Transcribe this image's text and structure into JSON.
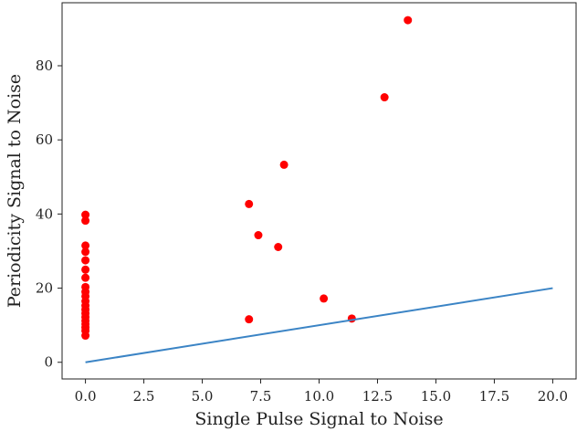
{
  "chart_data": {
    "type": "scatter",
    "xlabel": "Single Pulse Signal to Noise",
    "ylabel": "Periodicity Signal to Noise",
    "xlim": [
      -1.0,
      21.0
    ],
    "ylim": [
      -4.5,
      97.0
    ],
    "xticks": [
      0.0,
      2.5,
      5.0,
      7.5,
      10.0,
      12.5,
      15.0,
      17.5,
      20.0
    ],
    "xtick_labels": [
      "0.0",
      "2.5",
      "5.0",
      "7.5",
      "10.0",
      "12.5",
      "15.0",
      "17.5",
      "20.0"
    ],
    "yticks": [
      0,
      20,
      40,
      60,
      80
    ],
    "ytick_labels": [
      "0",
      "20",
      "40",
      "60",
      "80"
    ],
    "grid": false,
    "series": [
      {
        "kind": "scatter",
        "color": "#ff0000",
        "points": [
          [
            0.0,
            39.8
          ],
          [
            0.0,
            38.2
          ],
          [
            0.0,
            31.5
          ],
          [
            0.0,
            29.8
          ],
          [
            0.0,
            27.5
          ],
          [
            0.0,
            25.0
          ],
          [
            0.0,
            22.8
          ],
          [
            0.0,
            20.3
          ],
          [
            0.0,
            19.0
          ],
          [
            0.0,
            17.8
          ],
          [
            0.0,
            16.5
          ],
          [
            0.0,
            15.3
          ],
          [
            0.0,
            14.2
          ],
          [
            0.0,
            13.2
          ],
          [
            0.0,
            12.2
          ],
          [
            0.0,
            11.2
          ],
          [
            0.0,
            10.3
          ],
          [
            0.0,
            9.4
          ],
          [
            0.0,
            8.5
          ],
          [
            0.0,
            7.2
          ],
          [
            7.0,
            42.7
          ],
          [
            7.0,
            11.6
          ],
          [
            7.4,
            34.3
          ],
          [
            8.25,
            31.1
          ],
          [
            8.5,
            53.3
          ],
          [
            10.2,
            17.2
          ],
          [
            11.4,
            11.8
          ],
          [
            12.8,
            71.5
          ],
          [
            13.8,
            92.3
          ]
        ]
      },
      {
        "kind": "line",
        "color": "#3b84c5",
        "points": [
          [
            0.0,
            0.0
          ],
          [
            20.0,
            20.0
          ]
        ]
      }
    ]
  }
}
